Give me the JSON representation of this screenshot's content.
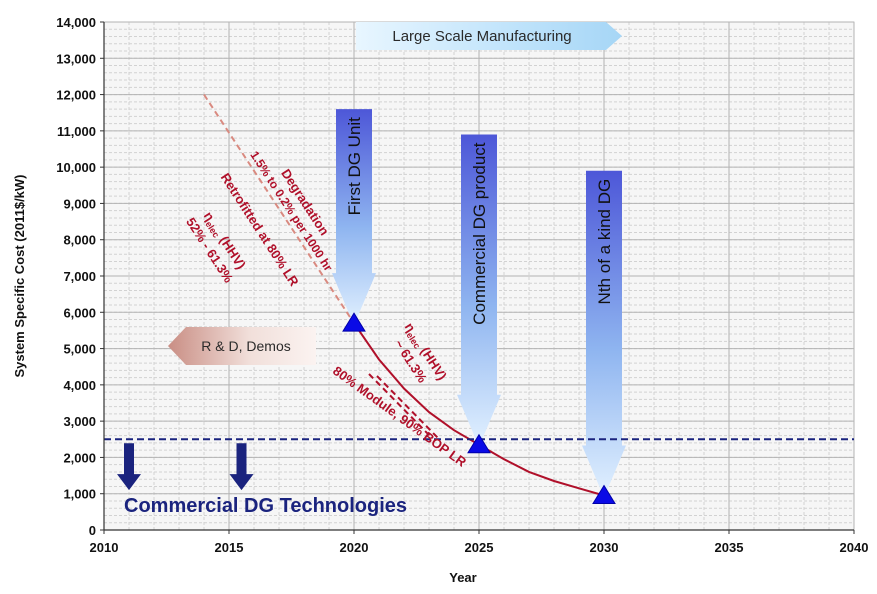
{
  "chart_data": {
    "type": "line",
    "title": "",
    "xlabel": "Year",
    "ylabel": "System Specific Cost (2011$/kW)",
    "xlim": [
      2010,
      2040
    ],
    "ylim": [
      0,
      14000
    ],
    "x_ticks": [
      {
        "value": 2010,
        "label": "2010"
      },
      {
        "value": 2015,
        "label": "2015"
      },
      {
        "value": 2020,
        "label": "2020"
      },
      {
        "value": 2025,
        "label": "2025"
      },
      {
        "value": 2030,
        "label": "2030"
      },
      {
        "value": 2035,
        "label": "2035"
      },
      {
        "value": 2040,
        "label": "2040"
      }
    ],
    "y_ticks": [
      {
        "value": 0,
        "label": "0"
      },
      {
        "value": 1000,
        "label": "1,000"
      },
      {
        "value": 2000,
        "label": "2,000"
      },
      {
        "value": 3000,
        "label": "3,000"
      },
      {
        "value": 4000,
        "label": "4,000"
      },
      {
        "value": 5000,
        "label": "5,000"
      },
      {
        "value": 6000,
        "label": "6,000"
      },
      {
        "value": 7000,
        "label": "7,000"
      },
      {
        "value": 8000,
        "label": "8,000"
      },
      {
        "value": 9000,
        "label": "9,000"
      },
      {
        "value": 10000,
        "label": "10,000"
      },
      {
        "value": 11000,
        "label": "11,000"
      },
      {
        "value": 12000,
        "label": "12,000"
      },
      {
        "value": 13000,
        "label": "13,000"
      },
      {
        "value": 14000,
        "label": "14,000"
      }
    ],
    "grid": true,
    "series": [
      {
        "key": "degradation-line",
        "style": "dashed",
        "color": "#d98a80",
        "x": [
          2014,
          2020
        ],
        "y": [
          12000,
          5700
        ]
      },
      {
        "key": "cost-curve",
        "style": "solid",
        "color": "#b0102a",
        "x": [
          2020,
          2021,
          2022,
          2023,
          2024,
          2025,
          2026,
          2027,
          2028,
          2029,
          2030
        ],
        "y": [
          5700,
          4700,
          3900,
          3250,
          2750,
          2350,
          1950,
          1600,
          1350,
          1150,
          950
        ]
      },
      {
        "key": "module-bop-lr-line",
        "style": "dashed",
        "color": "#b0102a",
        "x": [
          2020.6,
          2023.1
        ],
        "y": [
          4300,
          2550
        ]
      }
    ],
    "milestones": [
      {
        "key": "first-dg-unit",
        "label": "First DG Unit",
        "x": 2020,
        "y": 5700,
        "arrow_top": 11600
      },
      {
        "key": "commercial-dg-product",
        "label": "Commercial DG product",
        "x": 2025,
        "y": 2350,
        "arrow_top": 10900
      },
      {
        "key": "nth-of-a-kind-dg",
        "label": "Nth of a kind DG",
        "x": 2030,
        "y": 950,
        "arrow_top": 9900
      }
    ],
    "threshold": {
      "label": "Commercial DG Technologies",
      "value": 2500,
      "color": "#1a237e"
    },
    "down_arrows_x": [
      2011,
      2015.5
    ],
    "annotations": {
      "large_scale_manufacturing": "Large Scale Manufacturing",
      "rd_demos": "R & D, Demos",
      "degradation_line1": "Degradation",
      "degradation_line2": "1.5% to 0.2% per 1000 hr",
      "retrofitted": "Retrofitted at 80% LR",
      "eta_a": "η",
      "eta_a_sub": "elec",
      "eta_a_rest": " (HHV)",
      "eff_a": "52% - 61.3%",
      "eta_b": "η",
      "eta_b_sub": "elec",
      "eta_b_rest": " (HHV)",
      "eff_b": "~ 61.3%",
      "module_lr": "80% Module, 90% BOP LR"
    }
  }
}
